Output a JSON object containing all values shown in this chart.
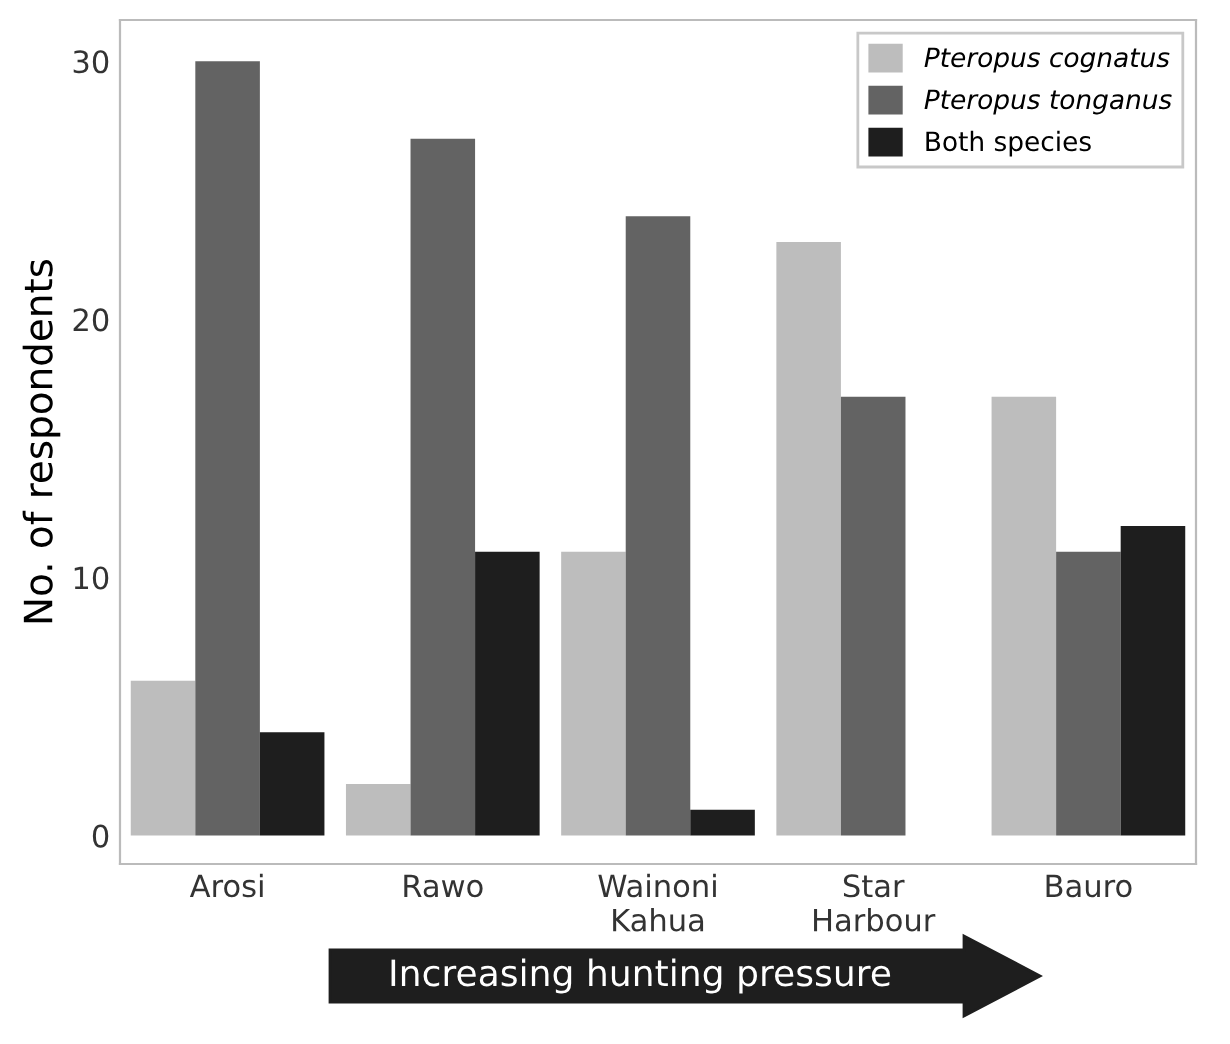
{
  "chart_data": {
    "type": "bar",
    "ylabel": "No. of respondents",
    "categories": [
      "Arosi",
      "Rawo",
      "Wainoni\nKahua",
      "Star\nHarbour",
      "Bauro"
    ],
    "series": [
      {
        "name": "Pteropus cognatus",
        "color": "#bdbdbd",
        "values": [
          6,
          2,
          11,
          23,
          17
        ]
      },
      {
        "name": "Pteropus tonganus",
        "color": "#636363",
        "values": [
          30,
          27,
          24,
          17,
          11
        ]
      },
      {
        "name": "Both species",
        "color": "#1e1e1e",
        "values": [
          4,
          11,
          1,
          0,
          12
        ]
      }
    ],
    "ylim": [
      -1.1,
      31.6
    ],
    "yticks": [
      0,
      10,
      20,
      30
    ],
    "grid": false,
    "legend": "top right",
    "annotations": [
      "Increasing hunting pressure"
    ]
  }
}
